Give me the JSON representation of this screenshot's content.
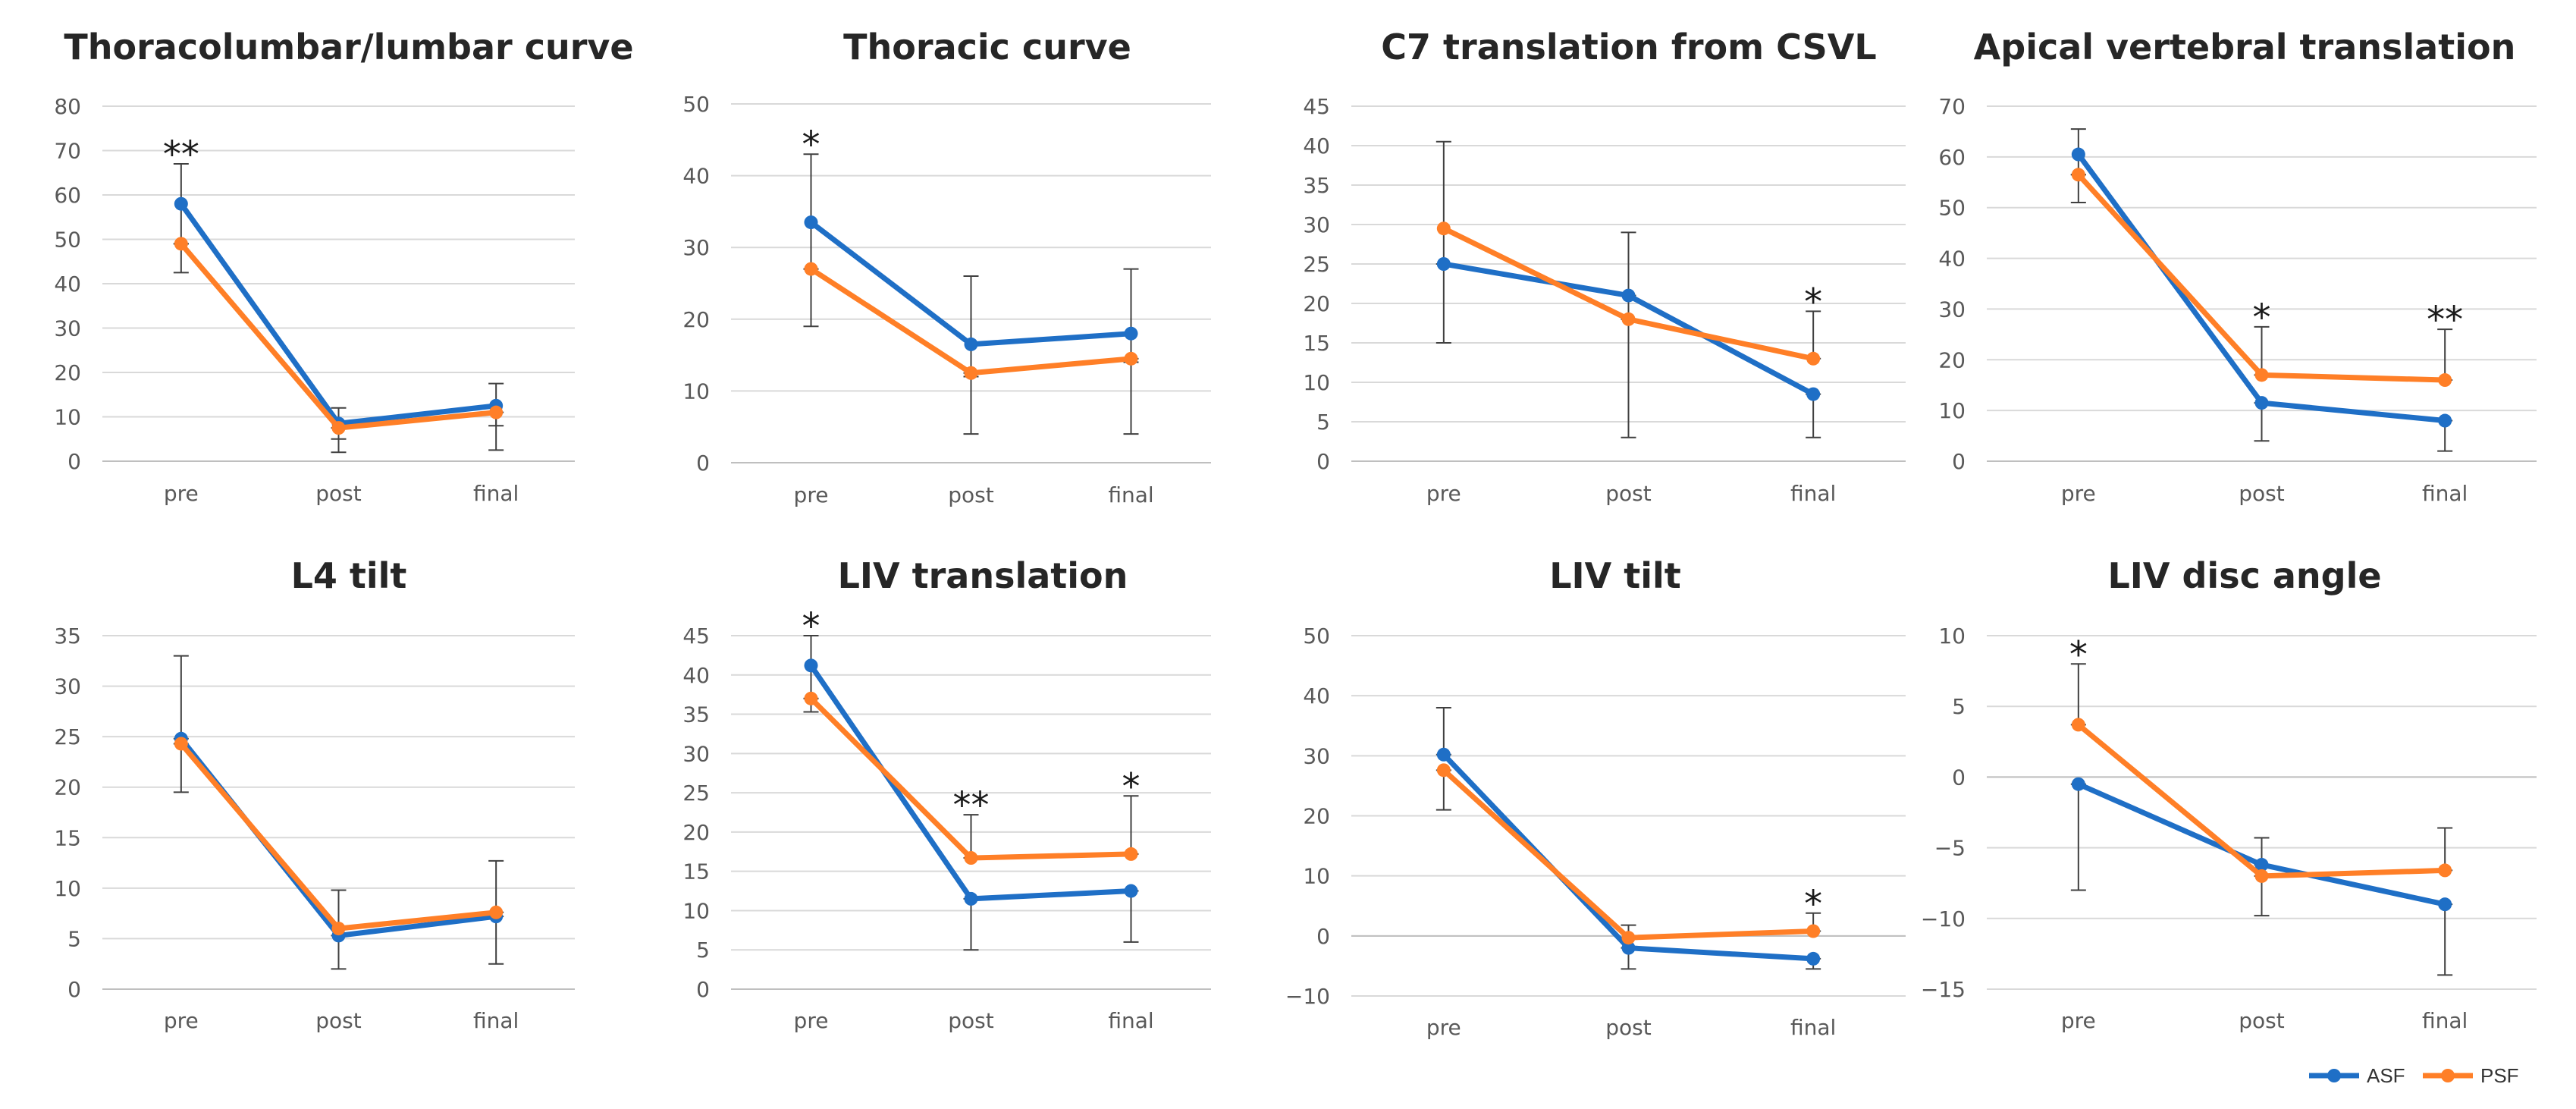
{
  "chart_data": [
    {
      "type": "line",
      "title": "Thoracolumbar/lumbar curve",
      "categories": [
        "pre",
        "post",
        "final"
      ],
      "ylim": [
        0,
        80
      ],
      "yticks": [
        0,
        10,
        20,
        30,
        40,
        50,
        60,
        70,
        80
      ],
      "series": [
        {
          "name": "ASF",
          "values": [
            58,
            8.5,
            12.5
          ],
          "error_bars": [
            [
              49,
              67
            ],
            [
              5,
              12
            ],
            [
              8,
              17.5
            ]
          ]
        },
        {
          "name": "PSF",
          "values": [
            49,
            7.5,
            11
          ],
          "error_bars": [
            [
              42.5,
              49
            ],
            [
              2,
              7.5
            ],
            [
              2.5,
              11
            ]
          ]
        }
      ],
      "annotations": [
        {
          "category": "pre",
          "text": "**"
        }
      ]
    },
    {
      "type": "line",
      "title": "Thoracic curve",
      "categories": [
        "pre",
        "post",
        "final"
      ],
      "ylim": [
        0,
        50
      ],
      "yticks": [
        0,
        10,
        20,
        30,
        40,
        50
      ],
      "series": [
        {
          "name": "ASF",
          "values": [
            33.5,
            16.5,
            18
          ],
          "error_bars": [
            [
              27,
              43
            ],
            [
              12,
              26
            ],
            [
              14,
              27
            ]
          ]
        },
        {
          "name": "PSF",
          "values": [
            27,
            12.5,
            14.5
          ],
          "error_bars": [
            [
              19,
              27
            ],
            [
              4,
              12.5
            ],
            [
              4,
              14.5
            ]
          ]
        }
      ],
      "annotations": [
        {
          "category": "pre",
          "text": "*"
        }
      ]
    },
    {
      "type": "line",
      "title": "C7 translation from CSVL",
      "categories": [
        "pre",
        "post",
        "final"
      ],
      "ylim": [
        0,
        45
      ],
      "yticks": [
        0,
        5,
        10,
        15,
        20,
        25,
        30,
        35,
        40,
        45
      ],
      "series": [
        {
          "name": "ASF",
          "values": [
            25,
            21,
            8.5
          ],
          "error_bars": [
            [
              15,
              25
            ],
            [
              3,
              21
            ],
            [
              3,
              8.5
            ]
          ]
        },
        {
          "name": "PSF",
          "values": [
            29.5,
            18,
            13
          ],
          "error_bars": [
            [
              25,
              40.5
            ],
            [
              18,
              29
            ],
            [
              13,
              19
            ]
          ]
        }
      ],
      "annotations": [
        {
          "category": "final",
          "text": "*"
        }
      ]
    },
    {
      "type": "line",
      "title": "Apical vertebral translation",
      "categories": [
        "pre",
        "post",
        "final"
      ],
      "ylim": [
        0,
        70
      ],
      "yticks": [
        0,
        10,
        20,
        30,
        40,
        50,
        60,
        70
      ],
      "series": [
        {
          "name": "ASF",
          "values": [
            60.5,
            11.5,
            8
          ],
          "error_bars": [
            [
              56.5,
              65.5
            ],
            [
              4,
              11.5
            ],
            [
              2,
              8
            ]
          ]
        },
        {
          "name": "PSF",
          "values": [
            56.5,
            17,
            16
          ],
          "error_bars": [
            [
              51,
              56.5
            ],
            [
              17,
              26.5
            ],
            [
              16,
              26
            ]
          ]
        }
      ],
      "annotations": [
        {
          "category": "post",
          "text": "*"
        },
        {
          "category": "final",
          "text": "**"
        }
      ]
    },
    {
      "type": "line",
      "title": "L4 tilt",
      "categories": [
        "pre",
        "post",
        "final"
      ],
      "ylim": [
        0,
        35
      ],
      "yticks": [
        0,
        5,
        10,
        15,
        20,
        25,
        30,
        35
      ],
      "series": [
        {
          "name": "ASF",
          "values": [
            24.8,
            5.3,
            7.2
          ],
          "error_bars": [
            [
              24.8,
              33
            ],
            [
              2,
              5.3
            ],
            [
              2.5,
              7.2
            ]
          ]
        },
        {
          "name": "PSF",
          "values": [
            24.3,
            6,
            7.6
          ],
          "error_bars": [
            [
              19.5,
              24.3
            ],
            [
              6,
              9.8
            ],
            [
              7.6,
              12.7
            ]
          ]
        }
      ],
      "annotations": []
    },
    {
      "type": "line",
      "title": "LIV translation",
      "categories": [
        "pre",
        "post",
        "final"
      ],
      "ylim": [
        0,
        45
      ],
      "yticks": [
        0,
        5,
        10,
        15,
        20,
        25,
        30,
        35,
        40,
        45
      ],
      "series": [
        {
          "name": "ASF",
          "values": [
            41.2,
            11.5,
            12.5
          ],
          "error_bars": [
            [
              37,
              45
            ],
            [
              5,
              11.5
            ],
            [
              6,
              12.5
            ]
          ]
        },
        {
          "name": "PSF",
          "values": [
            37,
            16.7,
            17.2
          ],
          "error_bars": [
            [
              35.3,
              37
            ],
            [
              16.7,
              22.2
            ],
            [
              17.2,
              24.6
            ]
          ]
        }
      ],
      "annotations": [
        {
          "category": "pre",
          "text": "*"
        },
        {
          "category": "post",
          "text": "**"
        },
        {
          "category": "final",
          "text": "*"
        }
      ]
    },
    {
      "type": "line",
      "title": "LIV tilt",
      "categories": [
        "pre",
        "post",
        "final"
      ],
      "ylim": [
        -10,
        50
      ],
      "yticks": [
        -10,
        0,
        10,
        20,
        30,
        40,
        50
      ],
      "series": [
        {
          "name": "ASF",
          "values": [
            30.2,
            -2,
            -3.8
          ],
          "error_bars": [
            [
              30.2,
              38
            ],
            [
              -5.5,
              -2
            ],
            [
              -5.5,
              -3.8
            ]
          ]
        },
        {
          "name": "PSF",
          "values": [
            27.6,
            -0.3,
            0.8
          ],
          "error_bars": [
            [
              21,
              27.6
            ],
            [
              -0.3,
              1.8
            ],
            [
              0.8,
              3.8
            ]
          ]
        }
      ],
      "annotations": [
        {
          "category": "final",
          "text": "*"
        }
      ]
    },
    {
      "type": "line",
      "title": "LIV disc angle",
      "categories": [
        "pre",
        "post",
        "final"
      ],
      "ylim": [
        -15,
        10
      ],
      "yticks": [
        -15,
        -10,
        -5,
        0,
        5,
        10
      ],
      "series": [
        {
          "name": "ASF",
          "values": [
            -0.5,
            -6.2,
            -9
          ],
          "error_bars": [
            [
              -8,
              -0.5
            ],
            [
              -6.2,
              -4.3
            ],
            [
              -14,
              -9
            ]
          ]
        },
        {
          "name": "PSF",
          "values": [
            3.7,
            -7,
            -6.6
          ],
          "error_bars": [
            [
              3.7,
              8
            ],
            [
              -9.8,
              -7
            ],
            [
              -6.6,
              -3.6
            ]
          ]
        }
      ],
      "annotations": [
        {
          "category": "pre",
          "text": "*"
        }
      ]
    }
  ],
  "legend": {
    "placement": "bottom-right",
    "entries": [
      {
        "name": "ASF",
        "color": "#1f6fc6"
      },
      {
        "name": "PSF",
        "color": "#ff7f27"
      }
    ]
  },
  "colors": {
    "ASF": "#1f6fc6",
    "PSF": "#ff7f27",
    "error_bar": "#404040",
    "gridline": "#d9d9d9",
    "axis": "#bfbfbf"
  }
}
